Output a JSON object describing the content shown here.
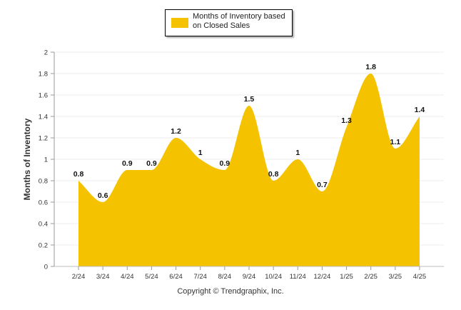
{
  "chart_data": {
    "type": "area",
    "categories": [
      "2/24",
      "3/24",
      "4/24",
      "5/24",
      "6/24",
      "7/24",
      "8/24",
      "9/24",
      "10/24",
      "11/24",
      "12/24",
      "1/25",
      "2/25",
      "3/25",
      "4/25"
    ],
    "series": [
      {
        "name": "Months of Inventory based on Closed Sales",
        "values": [
          0.8,
          0.6,
          0.9,
          0.9,
          1.2,
          1.0,
          0.9,
          1.5,
          0.8,
          1.0,
          0.7,
          1.3,
          1.8,
          1.1,
          1.4
        ]
      }
    ],
    "data_labels": [
      "0.8",
      "0.6",
      "0.9",
      "0.9",
      "1.2",
      "1",
      "0.9",
      "1.5",
      "0.8",
      "1",
      "0.7",
      "1.3",
      "1.8",
      "1.1",
      "1.4"
    ],
    "y_ticks": [
      "0",
      "0.2",
      "0.4",
      "0.6",
      "0.8",
      "1",
      "1.2",
      "1.4",
      "1.6",
      "1.8",
      "2"
    ],
    "ylim": [
      0,
      2
    ],
    "xlabel": "",
    "ylabel": "Months of Inventory",
    "grid": true,
    "legend_position": "top-center",
    "color": "#f5c200"
  },
  "footer": {
    "copyright": "Copyright © Trendgraphix, Inc."
  }
}
